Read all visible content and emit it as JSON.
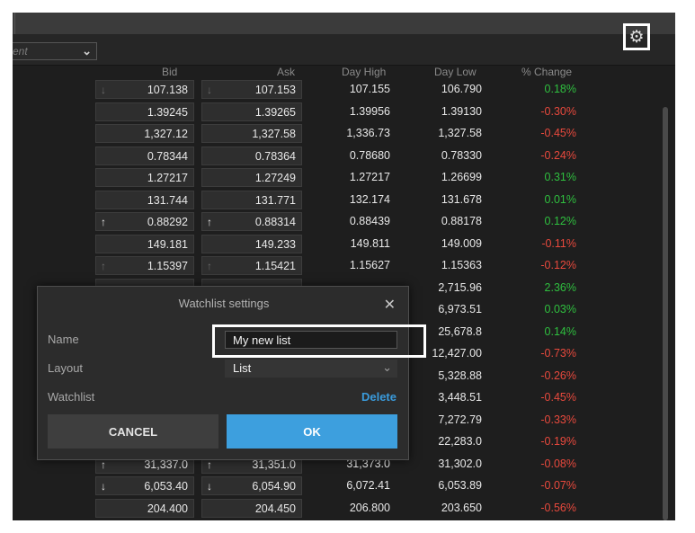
{
  "instrument_select": {
    "placeholder": "ent",
    "chevron": "chevron-down-icon"
  },
  "toolbar": {
    "settings_icon": "gear-icon"
  },
  "columns": [
    "Bid",
    "Ask",
    "Day High",
    "Day Low",
    "% Change"
  ],
  "colors": {
    "positive": "#2fbf3f",
    "negative": "#e8493d",
    "accent": "#3d9fde"
  },
  "rows": [
    {
      "bid": "107.138",
      "ask": "107.153",
      "high": "107.155",
      "low": "106.790",
      "change": "0.18%",
      "dir": "pos",
      "bid_arrow": "↓",
      "ask_arrow": "↓",
      "arrow_dim": true
    },
    {
      "bid": "1.39245",
      "ask": "1.39265",
      "high": "1.39956",
      "low": "1.39130",
      "change": "-0.30%",
      "dir": "neg",
      "bid_arrow": "",
      "ask_arrow": "",
      "arrow_dim": false
    },
    {
      "bid": "1,327.12",
      "ask": "1,327.58",
      "high": "1,336.73",
      "low": "1,327.58",
      "change": "-0.45%",
      "dir": "neg",
      "bid_arrow": "",
      "ask_arrow": "",
      "arrow_dim": false
    },
    {
      "bid": "0.78344",
      "ask": "0.78364",
      "high": "0.78680",
      "low": "0.78330",
      "change": "-0.24%",
      "dir": "neg",
      "bid_arrow": "",
      "ask_arrow": "",
      "arrow_dim": false
    },
    {
      "bid": "1.27217",
      "ask": "1.27249",
      "high": "1.27217",
      "low": "1.26699",
      "change": "0.31%",
      "dir": "pos",
      "bid_arrow": "",
      "ask_arrow": "",
      "arrow_dim": false
    },
    {
      "bid": "131.744",
      "ask": "131.771",
      "high": "132.174",
      "low": "131.678",
      "change": "0.01%",
      "dir": "pos",
      "bid_arrow": "",
      "ask_arrow": "",
      "arrow_dim": false
    },
    {
      "bid": "0.88292",
      "ask": "0.88314",
      "high": "0.88439",
      "low": "0.88178",
      "change": "0.12%",
      "dir": "pos",
      "bid_arrow": "↑",
      "ask_arrow": "↑",
      "arrow_dim": false
    },
    {
      "bid": "149.181",
      "ask": "149.233",
      "high": "149.811",
      "low": "149.009",
      "change": "-0.11%",
      "dir": "neg",
      "bid_arrow": "",
      "ask_arrow": "",
      "arrow_dim": false
    },
    {
      "bid": "1.15397",
      "ask": "1.15421",
      "high": "1.15627",
      "low": "1.15363",
      "change": "-0.12%",
      "dir": "neg",
      "bid_arrow": "↑",
      "ask_arrow": "↑",
      "arrow_dim": true
    },
    {
      "bid": "",
      "ask": "",
      "high": "",
      "low": "2,715.96",
      "change": "2.36%",
      "dir": "pos",
      "bid_arrow": "",
      "ask_arrow": "",
      "arrow_dim": false
    },
    {
      "bid": "",
      "ask": "",
      "high": "",
      "low": "6,973.51",
      "change": "0.03%",
      "dir": "pos",
      "bid_arrow": "",
      "ask_arrow": "",
      "arrow_dim": false
    },
    {
      "bid": "",
      "ask": "",
      "high": "",
      "low": "25,678.8",
      "change": "0.14%",
      "dir": "pos",
      "bid_arrow": "",
      "ask_arrow": "",
      "arrow_dim": false
    },
    {
      "bid": "",
      "ask": "",
      "high": "",
      "low": "12,427.00",
      "change": "-0.73%",
      "dir": "neg",
      "bid_arrow": "",
      "ask_arrow": "",
      "arrow_dim": false
    },
    {
      "bid": "",
      "ask": "",
      "high": "",
      "low": "5,328.88",
      "change": "-0.26%",
      "dir": "neg",
      "bid_arrow": "",
      "ask_arrow": "",
      "arrow_dim": false
    },
    {
      "bid": "",
      "ask": "",
      "high": "",
      "low": "3,448.51",
      "change": "-0.45%",
      "dir": "neg",
      "bid_arrow": "",
      "ask_arrow": "",
      "arrow_dim": false
    },
    {
      "bid": "",
      "ask": "",
      "high": "",
      "low": "7,272.79",
      "change": "-0.33%",
      "dir": "neg",
      "bid_arrow": "",
      "ask_arrow": "",
      "arrow_dim": false
    },
    {
      "bid": "",
      "ask": "",
      "high": "",
      "low": "22,283.0",
      "change": "-0.19%",
      "dir": "neg",
      "bid_arrow": "",
      "ask_arrow": "",
      "arrow_dim": false
    },
    {
      "bid": "31,337.0",
      "ask": "31,351.0",
      "high": "31,373.0",
      "low": "31,302.0",
      "change": "-0.08%",
      "dir": "neg",
      "bid_arrow": "↑",
      "ask_arrow": "↑",
      "arrow_dim": false
    },
    {
      "bid": "6,053.40",
      "ask": "6,054.90",
      "high": "6,072.41",
      "low": "6,053.89",
      "change": "-0.07%",
      "dir": "neg",
      "bid_arrow": "↓",
      "ask_arrow": "↓",
      "arrow_dim": false
    },
    {
      "bid": "204.400",
      "ask": "204.450",
      "high": "206.800",
      "low": "203.650",
      "change": "-0.56%",
      "dir": "neg",
      "bid_arrow": "",
      "ask_arrow": "",
      "arrow_dim": false
    }
  ],
  "dialog": {
    "title": "Watchlist settings",
    "close_icon": "close-icon",
    "name_label": "Name",
    "name_value": "My new list",
    "layout_label": "Layout",
    "layout_value": "List",
    "watchlist_label": "Watchlist",
    "delete_label": "Delete",
    "cancel_label": "CANCEL",
    "ok_label": "OK"
  }
}
